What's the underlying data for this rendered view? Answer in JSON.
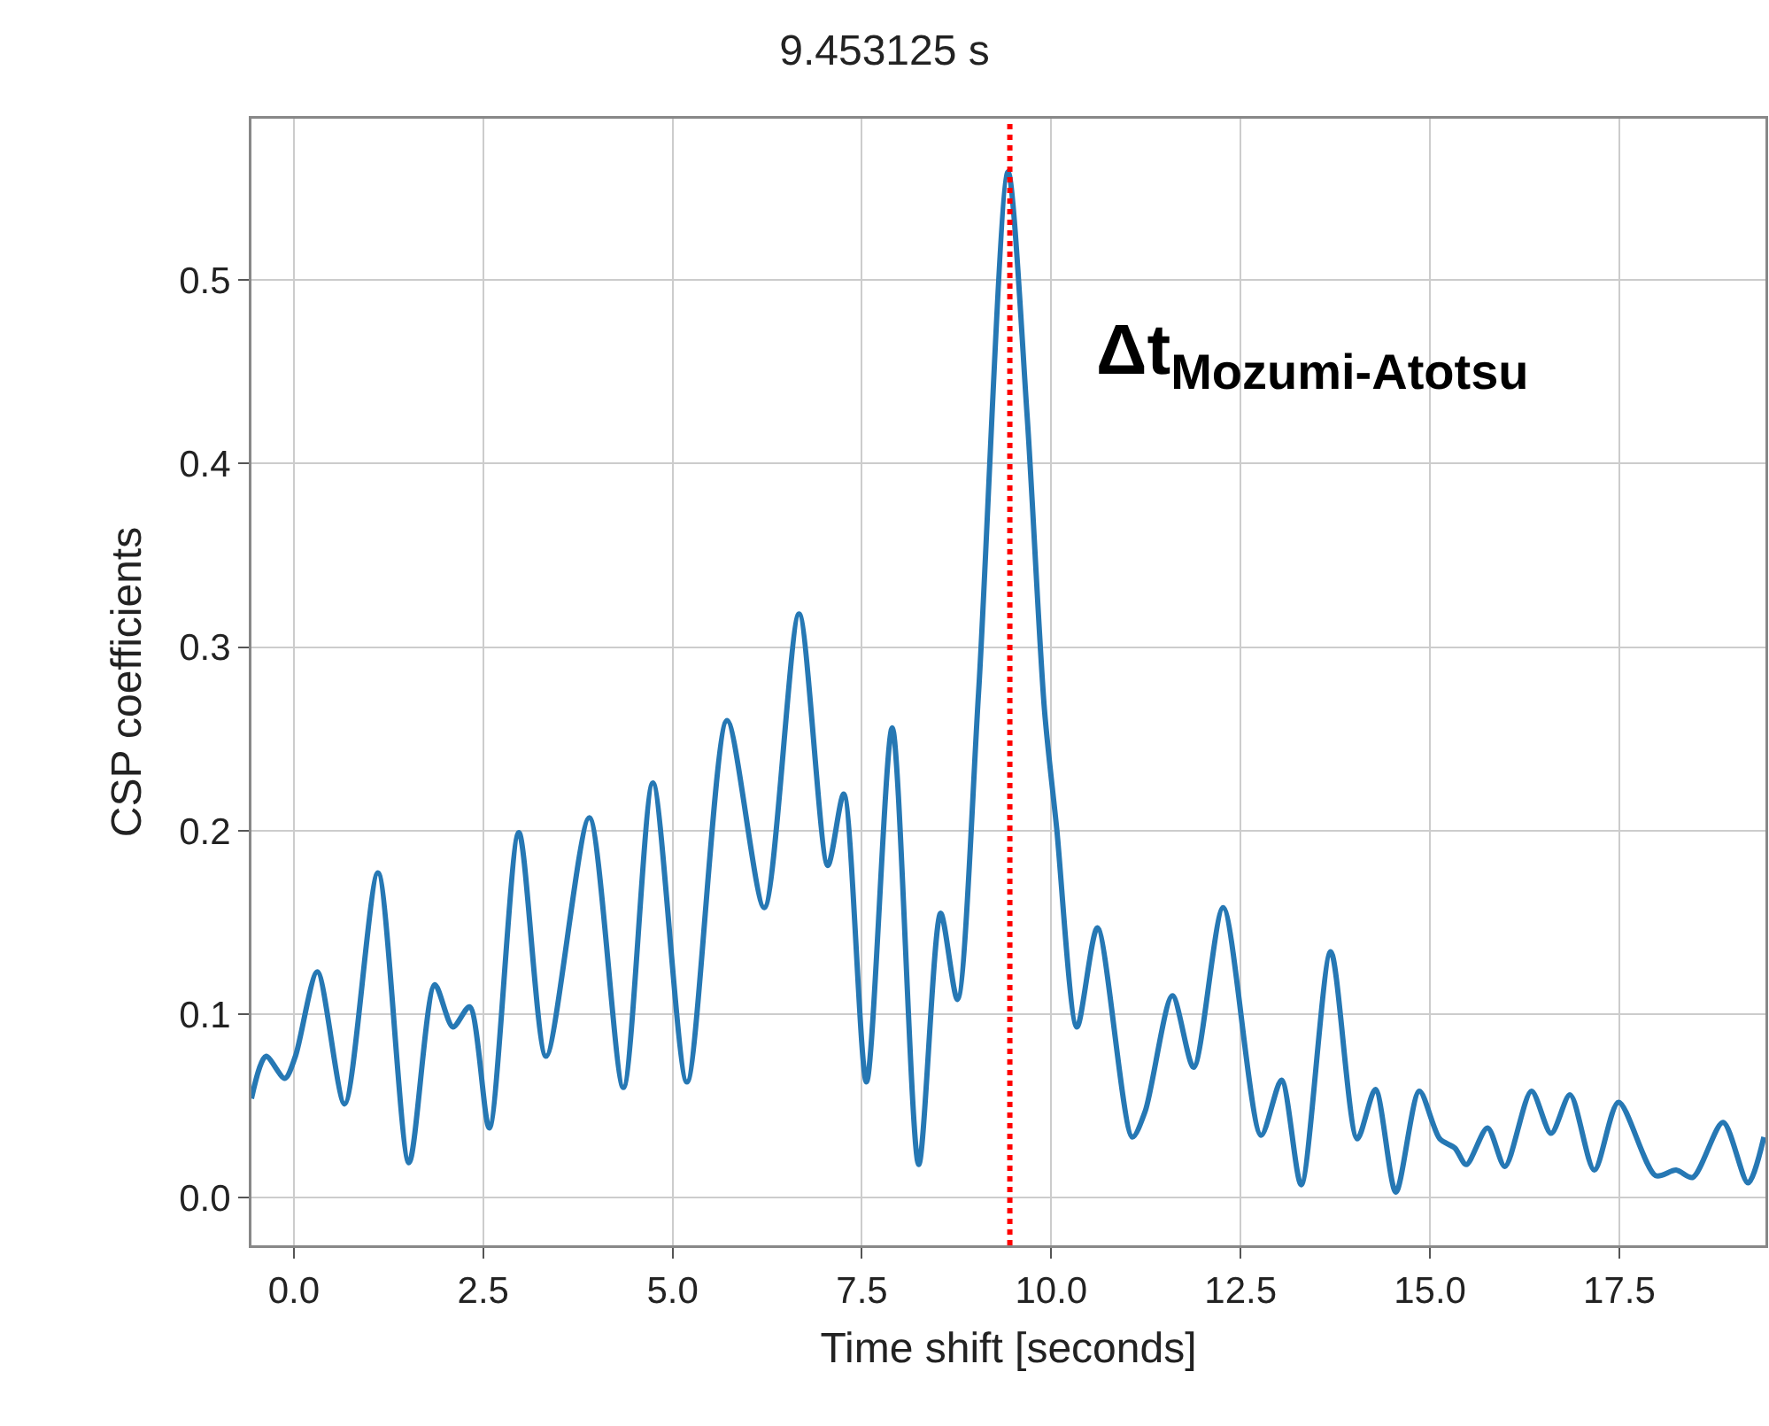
{
  "chart_data": {
    "type": "line",
    "title": "9.453125 s",
    "xlabel": "Time shift [seconds]",
    "ylabel": "CSP coefficients",
    "annotations": [
      "Δt$_{Mozumi-Atotsu}$"
    ],
    "series": [
      {
        "color": "#2678b4",
        "x": [
          -0.56,
          -0.37,
          -0.12,
          0.02,
          0.31,
          0.67,
          1.11,
          1.52,
          1.86,
          2.1,
          2.32,
          2.58,
          2.97,
          3.33,
          3.9,
          4.35,
          4.74,
          5.19,
          5.72,
          6.21,
          6.67,
          7.05,
          7.26,
          7.56,
          7.9,
          8.25,
          8.54,
          8.76,
          9.04,
          9.43,
          9.68,
          9.91,
          10.07,
          10.34,
          10.61,
          11.07,
          11.24,
          11.6,
          11.88,
          12.27,
          12.77,
          13.04,
          13.3,
          13.69,
          14.04,
          14.28,
          14.55,
          14.86,
          15.13,
          15.33,
          15.48,
          15.76,
          15.99,
          16.34,
          16.6,
          16.85,
          17.17,
          17.49,
          17.98,
          18.25,
          18.47,
          18.87,
          19.2,
          19.41
        ],
        "values": [
          0.054,
          0.077,
          0.065,
          0.077,
          0.123,
          0.051,
          0.177,
          0.019,
          0.116,
          0.093,
          0.104,
          0.038,
          0.199,
          0.077,
          0.207,
          0.06,
          0.226,
          0.063,
          0.26,
          0.158,
          0.318,
          0.181,
          0.22,
          0.063,
          0.256,
          0.018,
          0.155,
          0.108,
          0.275,
          0.559,
          0.427,
          0.266,
          0.202,
          0.093,
          0.147,
          0.033,
          0.047,
          0.11,
          0.071,
          0.158,
          0.034,
          0.064,
          0.007,
          0.134,
          0.032,
          0.059,
          0.003,
          0.058,
          0.032,
          0.027,
          0.018,
          0.038,
          0.017,
          0.058,
          0.035,
          0.056,
          0.015,
          0.052,
          0.012,
          0.015,
          0.011,
          0.041,
          0.008,
          0.033
        ]
      }
    ],
    "xlim": [
      -0.56,
      19.43
    ],
    "ylim": [
      -0.026,
      0.588
    ],
    "xticks": [
      {
        "value": 0,
        "label": "0.0"
      },
      2.5,
      {
        "value": 5,
        "label": "5.0"
      },
      7.5,
      {
        "value": 10,
        "label": "10.0"
      },
      12.5,
      {
        "value": 15,
        "label": "15.0"
      },
      17.5
    ],
    "yticks": [
      {
        "value": 0,
        "label": "0.0"
      },
      0.1,
      0.2,
      0.3,
      0.4,
      0.5
    ],
    "ref_lines": [
      {
        "axis": "x",
        "value": 9.453125,
        "color": "#ff0000",
        "line_style": "dotted"
      }
    ],
    "grid": true,
    "line_style": "solid",
    "marker": "none"
  }
}
